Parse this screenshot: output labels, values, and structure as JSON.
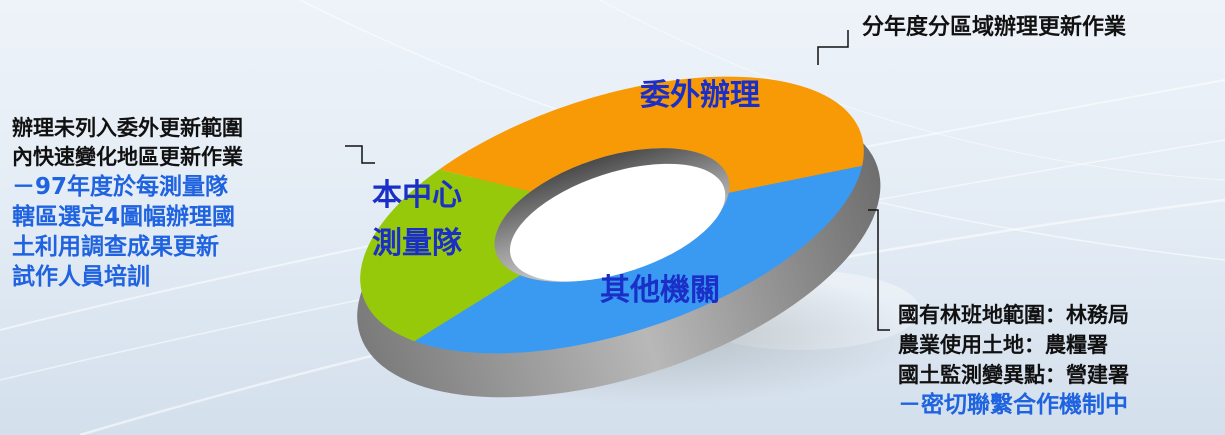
{
  "diagram": {
    "segments": [
      {
        "id": "outsourced",
        "label": "委外辦理",
        "color": "#f79a06"
      },
      {
        "id": "center",
        "label_lines": [
          "本中心",
          "測量隊"
        ],
        "color": "#96c90a"
      },
      {
        "id": "others",
        "label": "其他機關",
        "color": "#3a9af2"
      }
    ],
    "annotations": {
      "top": {
        "text": "分年度分區域辦理更新作業"
      },
      "left": {
        "lines": [
          "辦理未列入委外更新範圍",
          "內快速變化地區更新作業"
        ],
        "highlight_lines": [
          "－97年度於每測量隊",
          "轄區選定4圖幅辦理國",
          "土利用調查成果更新",
          "試作人員培訓"
        ],
        "highlight_color": "#1f63e0"
      },
      "right": {
        "lines": [
          "國有林班地範圍：林務局",
          "農業使用土地：農糧署",
          "國土監測變異點：營建署"
        ],
        "highlight_lines": [
          "－密切聯繫合作機制中"
        ],
        "highlight_color": "#1f63e0"
      }
    }
  }
}
